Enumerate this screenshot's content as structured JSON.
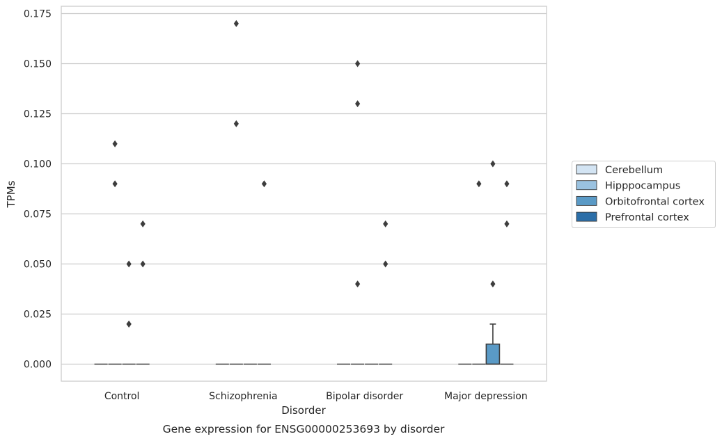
{
  "chart_data": {
    "type": "box",
    "title": "Gene expression for ENSG00000253693 by disorder",
    "xlabel": "Disorder",
    "ylabel": "TPMs",
    "ylim": [
      -0.0085,
      0.179
    ],
    "yticks": [
      0.0,
      0.025,
      0.05,
      0.075,
      0.1,
      0.125,
      0.15,
      0.175
    ],
    "ytick_labels": [
      "0.000",
      "0.025",
      "0.050",
      "0.075",
      "0.100",
      "0.125",
      "0.150",
      "0.175"
    ],
    "grid": "horizontal",
    "legend_position": "right-center",
    "categories": [
      "Control",
      "Schizophrenia",
      "Bipolar disorder",
      "Major depression"
    ],
    "series": [
      {
        "name": "Cerebellum",
        "color": "#d3e4f3",
        "boxes": [
          {
            "q1": 0,
            "median": 0,
            "q3": 0,
            "whisker_low": 0,
            "whisker_high": 0,
            "outliers": []
          },
          {
            "q1": 0,
            "median": 0,
            "q3": 0,
            "whisker_low": 0,
            "whisker_high": 0,
            "outliers": []
          },
          {
            "q1": 0,
            "median": 0,
            "q3": 0,
            "whisker_low": 0,
            "whisker_high": 0,
            "outliers": []
          },
          {
            "q1": 0,
            "median": 0,
            "q3": 0,
            "whisker_low": 0,
            "whisker_high": 0,
            "outliers": []
          }
        ]
      },
      {
        "name": "Hipppocampus",
        "color": "#9ac2e0",
        "boxes": [
          {
            "q1": 0,
            "median": 0,
            "q3": 0,
            "whisker_low": 0,
            "whisker_high": 0,
            "outliers": [
              0.11,
              0.09
            ]
          },
          {
            "q1": 0,
            "median": 0,
            "q3": 0,
            "whisker_low": 0,
            "whisker_high": 0,
            "outliers": [
              0.17,
              0.12
            ]
          },
          {
            "q1": 0,
            "median": 0,
            "q3": 0,
            "whisker_low": 0,
            "whisker_high": 0,
            "outliers": [
              0.15,
              0.13,
              0.04
            ]
          },
          {
            "q1": 0,
            "median": 0,
            "q3": 0,
            "whisker_low": 0,
            "whisker_high": 0,
            "outliers": [
              0.09
            ]
          }
        ]
      },
      {
        "name": "Orbitofrontal cortex",
        "color": "#5a9ac6",
        "boxes": [
          {
            "q1": 0,
            "median": 0,
            "q3": 0,
            "whisker_low": 0,
            "whisker_high": 0,
            "outliers": [
              0.05,
              0.02,
              0.02
            ]
          },
          {
            "q1": 0,
            "median": 0,
            "q3": 0,
            "whisker_low": 0,
            "whisker_high": 0,
            "outliers": []
          },
          {
            "q1": 0,
            "median": 0,
            "q3": 0,
            "whisker_low": 0,
            "whisker_high": 0,
            "outliers": []
          },
          {
            "q1": 0,
            "median": 0,
            "q3": 0.01,
            "whisker_low": 0,
            "whisker_high": 0.02,
            "outliers": [
              0.1,
              0.04
            ]
          }
        ]
      },
      {
        "name": "Prefrontal cortex",
        "color": "#2b6ea8",
        "boxes": [
          {
            "q1": 0,
            "median": 0,
            "q3": 0,
            "whisker_low": 0,
            "whisker_high": 0,
            "outliers": [
              0.07,
              0.05
            ]
          },
          {
            "q1": 0,
            "median": 0,
            "q3": 0,
            "whisker_low": 0,
            "whisker_high": 0,
            "outliers": [
              0.09
            ]
          },
          {
            "q1": 0,
            "median": 0,
            "q3": 0,
            "whisker_low": 0,
            "whisker_high": 0,
            "outliers": [
              0.07,
              0.05
            ]
          },
          {
            "q1": 0,
            "median": 0,
            "q3": 0,
            "whisker_low": 0,
            "whisker_high": 0,
            "outliers": [
              0.09,
              0.07
            ]
          }
        ]
      }
    ]
  }
}
